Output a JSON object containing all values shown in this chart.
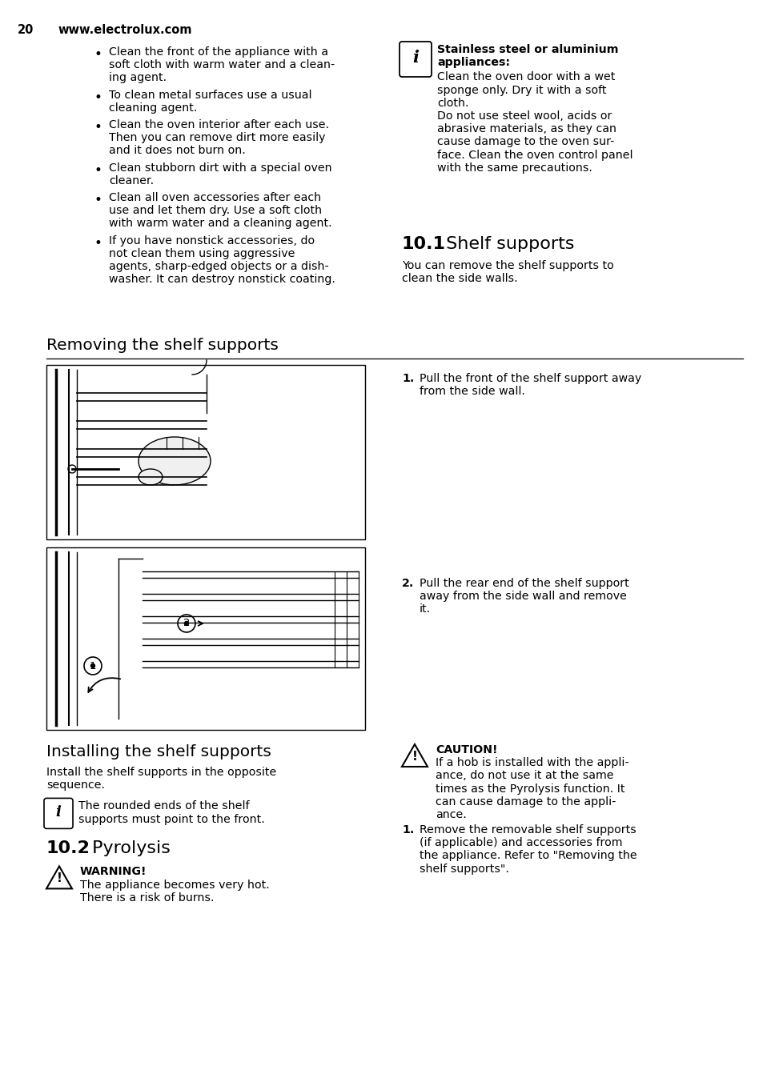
{
  "page_number": "20",
  "website": "www.electrolux.com",
  "bg_color": "#ffffff",
  "text_color": "#000000",
  "bullet_items": [
    "Clean the front of the appliance with a\nsoft cloth with warm water and a clean-\ning agent.",
    "To clean metal surfaces use a usual\ncleaning agent.",
    "Clean the oven interior after each use.\nThen you can remove dirt more easily\nand it does not burn on.",
    "Clean stubborn dirt with a special oven\ncleaner.",
    "Clean all oven accessories after each\nuse and let them dry. Use a soft cloth\nwith warm water and a cleaning agent.",
    "If you have nonstick accessories, do\nnot clean them using aggressive\nagents, sharp-edged objects or a dish-\nwasher. It can destroy nonstick coating."
  ],
  "info_title_line1": "Stainless steel or aluminium",
  "info_title_line2": "appliances:",
  "info_body": [
    "Clean the oven door with a wet",
    "sponge only. Dry it with a soft",
    "cloth.",
    "Do not use steel wool, acids or",
    "abrasive materials, as they can",
    "cause damage to the oven sur-",
    "face. Clean the oven control panel",
    "with the same precautions."
  ],
  "sec101_num": "10.1",
  "sec101_title": " Shelf supports",
  "sec101_body": [
    "You can remove the shelf supports to",
    "clean the side walls."
  ],
  "removing_title": "Removing the shelf supports",
  "step1_num": "1.",
  "step1_lines": [
    "Pull the front of the shelf support away",
    "from the side wall."
  ],
  "step2_num": "2.",
  "step2_lines": [
    "Pull the rear end of the shelf support",
    "away from the side wall and remove",
    "it."
  ],
  "installing_title": "Installing the shelf supports",
  "installing_body": [
    "Install the shelf supports in the opposite",
    "sequence."
  ],
  "info2_body": [
    "The rounded ends of the shelf",
    "supports must point to the front."
  ],
  "sec102_num": "10.2",
  "sec102_title": " Pyrolysis",
  "warn_title": "WARNING!",
  "warn_body": [
    "The appliance becomes very hot.",
    "There is a risk of burns."
  ],
  "caution_title": "CAUTION!",
  "caution_body": [
    "If a hob is installed with the appli-",
    "ance, do not use it at the same",
    "times as the Pyrolysis function. It",
    "can cause damage to the appli-",
    "ance."
  ],
  "step1b_num": "1.",
  "step1b_lines": [
    "Remove the removable shelf supports",
    "(if applicable) and accessories from",
    "the appliance. Refer to \"Removing the",
    "shelf supports\"."
  ]
}
